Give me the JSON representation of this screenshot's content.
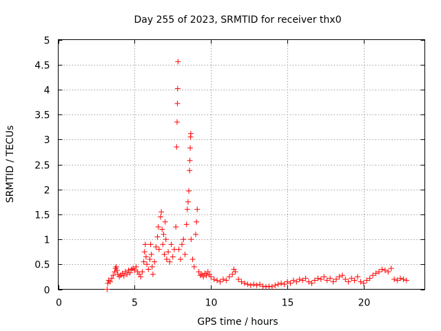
{
  "chart_data": {
    "type": "scatter",
    "title": "Day 255 of 2023, SRMTID for receiver thx0",
    "xlabel": "GPS time / hours",
    "ylabel": "SRMTID / TECUs",
    "xlim": [
      0,
      24
    ],
    "ylim": [
      0,
      5
    ],
    "xticks": [
      0,
      5,
      10,
      15,
      20
    ],
    "yticks": [
      0,
      0.5,
      1,
      1.5,
      2,
      2.5,
      3,
      3.5,
      4,
      4.5,
      5
    ],
    "xtick_labels": [
      "0",
      "5",
      "10",
      "15",
      "20"
    ],
    "ytick_labels": [
      "0",
      "0.5",
      "1",
      "1.5",
      "2",
      "2.5",
      "3",
      "3.5",
      "4",
      "4.5",
      "5"
    ],
    "grid": true,
    "marker": "+",
    "marker_color": "#ff0000",
    "series": [
      {
        "name": "thx0",
        "points": [
          [
            3.2,
            0.0
          ],
          [
            3.25,
            0.12
          ],
          [
            3.3,
            0.18
          ],
          [
            3.4,
            0.15
          ],
          [
            3.5,
            0.22
          ],
          [
            3.6,
            0.28
          ],
          [
            3.7,
            0.35
          ],
          [
            3.75,
            0.42
          ],
          [
            3.8,
            0.45
          ],
          [
            3.85,
            0.38
          ],
          [
            3.9,
            0.3
          ],
          [
            4.0,
            0.25
          ],
          [
            4.1,
            0.28
          ],
          [
            4.2,
            0.32
          ],
          [
            4.3,
            0.27
          ],
          [
            4.4,
            0.35
          ],
          [
            4.5,
            0.3
          ],
          [
            4.6,
            0.38
          ],
          [
            4.7,
            0.33
          ],
          [
            4.8,
            0.4
          ],
          [
            4.9,
            0.42
          ],
          [
            5.0,
            0.38
          ],
          [
            5.1,
            0.45
          ],
          [
            5.2,
            0.35
          ],
          [
            5.3,
            0.3
          ],
          [
            5.4,
            0.25
          ],
          [
            5.5,
            0.35
          ],
          [
            5.6,
            0.55
          ],
          [
            5.65,
            0.75
          ],
          [
            5.7,
            0.9
          ],
          [
            5.75,
            0.65
          ],
          [
            5.8,
            0.5
          ],
          [
            5.9,
            0.4
          ],
          [
            6.0,
            0.6
          ],
          [
            6.05,
            0.9
          ],
          [
            6.1,
            0.7
          ],
          [
            6.15,
            0.45
          ],
          [
            6.2,
            0.3
          ],
          [
            6.3,
            0.55
          ],
          [
            6.4,
            0.85
          ],
          [
            6.5,
            1.05
          ],
          [
            6.55,
            1.25
          ],
          [
            6.6,
            0.8
          ],
          [
            6.7,
            1.45
          ],
          [
            6.75,
            1.55
          ],
          [
            6.8,
            1.2
          ],
          [
            6.85,
            0.9
          ],
          [
            6.9,
            1.1
          ],
          [
            6.95,
            0.7
          ],
          [
            7.0,
            1.35
          ],
          [
            7.05,
            1.0
          ],
          [
            7.1,
            0.6
          ],
          [
            7.2,
            0.75
          ],
          [
            7.3,
            0.55
          ],
          [
            7.4,
            0.9
          ],
          [
            7.5,
            0.65
          ],
          [
            7.6,
            0.8
          ],
          [
            7.7,
            1.25
          ],
          [
            7.75,
            2.85
          ],
          [
            7.78,
            3.35
          ],
          [
            7.8,
            3.72
          ],
          [
            7.82,
            4.02
          ],
          [
            7.84,
            4.56
          ],
          [
            7.9,
            0.8
          ],
          [
            8.0,
            0.6
          ],
          [
            8.1,
            0.9
          ],
          [
            8.2,
            1.0
          ],
          [
            8.3,
            0.7
          ],
          [
            8.4,
            1.3
          ],
          [
            8.45,
            1.6
          ],
          [
            8.5,
            1.75
          ],
          [
            8.55,
            1.97
          ],
          [
            8.6,
            2.38
          ],
          [
            8.62,
            2.58
          ],
          [
            8.64,
            2.83
          ],
          [
            8.66,
            3.05
          ],
          [
            8.68,
            3.12
          ],
          [
            8.7,
            1.0
          ],
          [
            8.8,
            0.6
          ],
          [
            8.9,
            0.45
          ],
          [
            9.0,
            1.1
          ],
          [
            9.05,
            1.35
          ],
          [
            9.1,
            1.6
          ],
          [
            9.2,
            0.35
          ],
          [
            9.3,
            0.28
          ],
          [
            9.4,
            0.3
          ],
          [
            9.5,
            0.25
          ],
          [
            9.6,
            0.32
          ],
          [
            9.7,
            0.28
          ],
          [
            9.8,
            0.35
          ],
          [
            9.9,
            0.3
          ],
          [
            10.0,
            0.25
          ],
          [
            10.2,
            0.2
          ],
          [
            10.4,
            0.18
          ],
          [
            10.6,
            0.15
          ],
          [
            10.8,
            0.2
          ],
          [
            11.0,
            0.18
          ],
          [
            11.2,
            0.25
          ],
          [
            11.4,
            0.3
          ],
          [
            11.5,
            0.4
          ],
          [
            11.6,
            0.35
          ],
          [
            11.8,
            0.2
          ],
          [
            12.0,
            0.15
          ],
          [
            12.2,
            0.12
          ],
          [
            12.4,
            0.1
          ],
          [
            12.6,
            0.08
          ],
          [
            12.8,
            0.1
          ],
          [
            13.0,
            0.08
          ],
          [
            13.2,
            0.1
          ],
          [
            13.4,
            0.06
          ],
          [
            13.6,
            0.05
          ],
          [
            13.8,
            0.06
          ],
          [
            14.0,
            0.05
          ],
          [
            14.2,
            0.08
          ],
          [
            14.4,
            0.1
          ],
          [
            14.6,
            0.12
          ],
          [
            14.8,
            0.1
          ],
          [
            15.0,
            0.15
          ],
          [
            15.2,
            0.12
          ],
          [
            15.4,
            0.18
          ],
          [
            15.6,
            0.15
          ],
          [
            15.8,
            0.2
          ],
          [
            16.0,
            0.18
          ],
          [
            16.2,
            0.22
          ],
          [
            16.4,
            0.15
          ],
          [
            16.6,
            0.12
          ],
          [
            16.8,
            0.18
          ],
          [
            17.0,
            0.22
          ],
          [
            17.2,
            0.2
          ],
          [
            17.4,
            0.25
          ],
          [
            17.6,
            0.18
          ],
          [
            17.8,
            0.22
          ],
          [
            18.0,
            0.15
          ],
          [
            18.2,
            0.2
          ],
          [
            18.4,
            0.25
          ],
          [
            18.6,
            0.28
          ],
          [
            18.8,
            0.2
          ],
          [
            19.0,
            0.15
          ],
          [
            19.2,
            0.22
          ],
          [
            19.4,
            0.18
          ],
          [
            19.6,
            0.25
          ],
          [
            19.8,
            0.15
          ],
          [
            20.0,
            0.12
          ],
          [
            20.2,
            0.18
          ],
          [
            20.4,
            0.22
          ],
          [
            20.6,
            0.28
          ],
          [
            20.8,
            0.32
          ],
          [
            21.0,
            0.35
          ],
          [
            21.2,
            0.4
          ],
          [
            21.4,
            0.38
          ],
          [
            21.6,
            0.35
          ],
          [
            21.8,
            0.42
          ],
          [
            22.0,
            0.2
          ],
          [
            22.2,
            0.18
          ],
          [
            22.4,
            0.22
          ],
          [
            22.6,
            0.2
          ],
          [
            22.8,
            0.18
          ]
        ]
      }
    ]
  }
}
